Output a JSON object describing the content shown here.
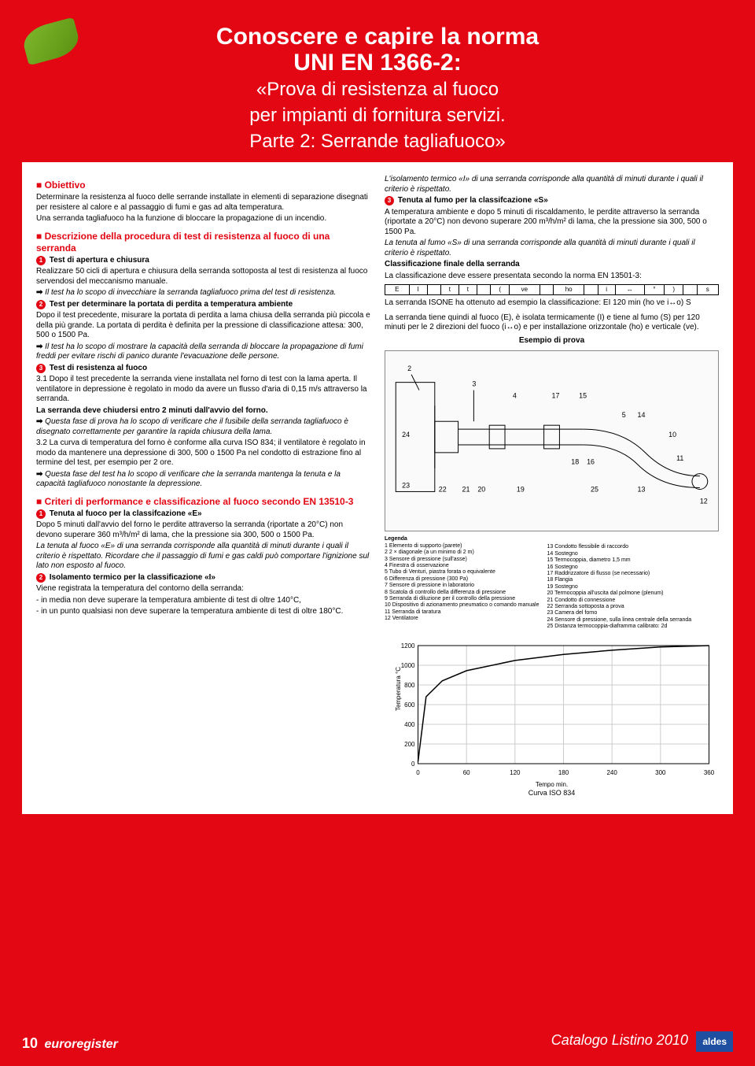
{
  "header": {
    "title_line1": "Conoscere e capire la norma",
    "title_line2": "UNI EN 1366-2:",
    "subtitle_line1": "«Prova di resistenza al fuoco",
    "subtitle_line2": "per impianti di fornitura servizi.",
    "subtitle_line3": "Parte 2: Serrande tagliafuoco»"
  },
  "left": {
    "sec1_title": "Obiettivo",
    "sec1_p1": "Determinare la resistenza al fuoco delle serrande installate in elementi di separazione disegnati per resistere al calore e al passaggio di fumi e gas ad alta temperatura.",
    "sec1_p2": "Una serranda tagliafuoco ha la funzione di bloccare la propagazione di un incendio.",
    "sec2_title": "Descrizione della procedura di test di resistenza al fuoco di una serranda",
    "b1_title": "Test di apertura e chiusura",
    "b1_p1": "Realizzare 50 cicli di apertura e chiusura della serranda sottoposta al test di resistenza al fuoco servendosi del meccanismo manuale.",
    "b1_note": "Il test ha lo scopo di invecchiare la serranda tagliafuoco prima del test di resistenza.",
    "b2_title": "Test per determinare la portata di perdita a temperatura ambiente",
    "b2_p1": "Dopo il test precedente, misurare la portata di perdita a lama chiusa della serranda più piccola e della più grande. La portata di perdita è definita per la pressione di classificazione attesa: 300, 500 o 1500 Pa.",
    "b2_note": "Il test ha lo scopo di mostrare la capacità della serranda di bloccare la propagazione di fumi freddi per evitare rischi di panico durante l'evacuazione delle persone.",
    "b3_title": "Test di resistenza al fuoco",
    "b3_p1": "3.1 Dopo il test precedente la serranda viene installata nel forno di test con la lama aperta. Il ventilatore in depressione è regolato in modo da avere un flusso d'aria di 0,15 m/s attraverso la serranda.",
    "b3_p1b": "La serranda deve chiudersi entro 2 minuti dall'avvio del forno.",
    "b3_note1": "Questa fase di prova ha lo scopo di verificare che il fusibile della serranda tagliafuoco è disegnato correttamente per garantire la rapida chiusura della lama.",
    "b3_p2": "3.2 La curva di temperatura del forno è conforme alla curva ISO 834; il ventilatore è regolato in modo da mantenere una depressione di 300, 500 o 1500 Pa nel condotto di estrazione fino al termine del test, per esempio per 2 ore.",
    "b3_note2": "Questa fase del test ha lo scopo di verificare che la serranda mantenga la tenuta e la capacità tagliafuoco nonostante la depressione.",
    "sec3_title": "Criteri di performance e classificazione al fuoco secondo EN 13510-3",
    "c1_title": "Tenuta al fuoco per la classifcazione «E»",
    "c1_p1": "Dopo 5 minuti dall'avvio del forno le perdite attraverso la serranda (riportate a 20°C) non devono superare 360 m³/h/m² di lama, che la pressione sia 300, 500 o 1500 Pa.",
    "c1_note": "La tenuta al fuoco «E» di una serranda corrisponde alla quantità di minuti durante i quali il criterio è rispettato. Ricordare che il passaggio di fumi e gas caldi può comportare l'ignizione sul lato non esposto al fuoco.",
    "c2_title": "Isolamento termico per la classificazione «I»",
    "c2_p1": "Viene registrata la temperatura del contorno della serranda:",
    "c2_li1": "- in media non deve superare la temperatura ambiente di test di oltre 140°C,",
    "c2_li2": "- in un punto qualsiasi non deve superare la temperatura ambiente di test di oltre 180°C."
  },
  "right": {
    "intro_note": "L'isolamento termico «I» di una serranda corrisponde alla quantità di minuti durante i quali il criterio è rispettato.",
    "r3_title": "Tenuta al fumo per la classifcazione «S»",
    "r3_p1": "A temperatura ambiente e dopo 5 minuti di riscaldamento, le perdite attraverso la serranda (riportate a 20°C) non devono superare 200 m³/h/m² di lama, che la pressione sia 300, 500 o 1500 Pa.",
    "r3_note": "La tenuta al fumo «S» di una serranda corrisponde alla quantità di minuti durante i quali il criterio è rispettato.",
    "cls_title": "Classificazione finale della serranda",
    "cls_p1": "La classificazione deve essere presentata secondo la norma EN 13501-3:",
    "cls_cells": [
      "E",
      "I",
      "",
      "t",
      "t",
      "",
      "(",
      "ve",
      "",
      "ho",
      "",
      "i",
      "↔",
      "°",
      ")",
      "",
      "s"
    ],
    "cls_p2": "La serranda ISONE ha ottenuto ad esempio la classificazione: EI 120 min (ho ve i↔o) S",
    "cls_p3": "La serranda tiene quindi al fuoco (E), è isolata termicamente (I) e tiene al fumo (S) per 120 minuti per le 2 direzioni del fuoco (i↔o) e per installazione orizzontale (ho) e verticale (ve).",
    "diag_title": "Esempio di prova",
    "legenda_title": "Legenda",
    "legenda_left": [
      "1  Elemento di supporto (parete)",
      "2  2 × diagonale (a un minimo di 2 m)",
      "3  Sensore di pressione (sull'asse)",
      "4  Finestra di osservazione",
      "5  Tubo di Venturi, piastra forata o equivalente",
      "6  Differenza di pressione (300 Pa)",
      "7  Sensore di pressione in laboratorio",
      "8  Scatola di controllo della differenza di pressione",
      "9  Serranda di diluzione per il controllo della pressione",
      "10 Dispositivo di azionamento pneumatico o comando manuale",
      "11 Serranda di taratura",
      "12 Ventilatore"
    ],
    "legenda_right": [
      "13 Condotto flessibile di raccordo",
      "14 Sostegno",
      "15 Termocoppia, diametro 1,5 mm",
      "16 Sostegno",
      "17 Raddrizzatore di flusso (se necessario)",
      "18 Flangia",
      "19 Sostegno",
      "20 Termocoppia all'uscita dal polmone (plenum)",
      "21 Condotto di connessione",
      "22 Serranda sottoposta a prova",
      "23 Camera del forno",
      "24 Sensore di pressione, sulla linea centrale della serranda",
      "25 Distanza termocoppia-diaframma calibrato: 2d"
    ],
    "chart": {
      "ylabel": "Temperatura °C",
      "xlabel": "Tempo  min.",
      "curve_label": "Curva ISO 834",
      "yticks": [
        0,
        200,
        400,
        600,
        800,
        1000,
        1200
      ],
      "xticks": [
        0,
        60,
        120,
        180,
        240,
        300,
        360
      ],
      "ylim": [
        0,
        1200
      ],
      "xlim": [
        0,
        360
      ],
      "curve_points": [
        [
          0,
          20
        ],
        [
          10,
          680
        ],
        [
          30,
          842
        ],
        [
          60,
          945
        ],
        [
          120,
          1049
        ],
        [
          180,
          1110
        ],
        [
          240,
          1153
        ],
        [
          300,
          1186
        ],
        [
          360,
          1214
        ]
      ],
      "curve_color": "#000000",
      "grid_color": "#cccccc"
    }
  },
  "footer": {
    "page": "10",
    "brand": "euroregister",
    "catalog": "Catalogo Listino 2010",
    "logo": "aldes"
  }
}
